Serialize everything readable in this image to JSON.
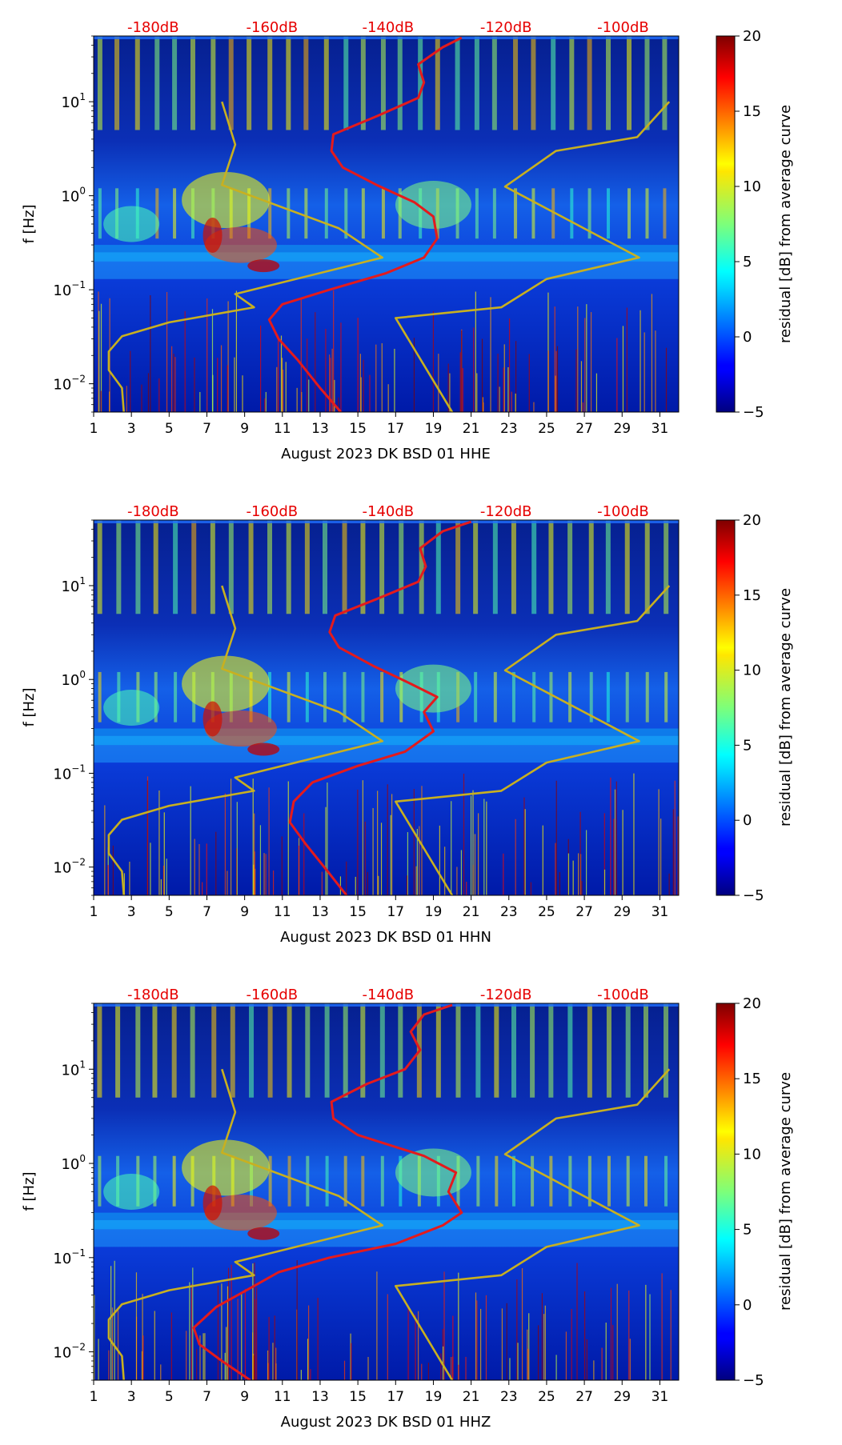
{
  "figure": {
    "colorbar_label": "residual [dB] from average curve",
    "ylabel": "f [Hz]"
  },
  "chart_data": [
    {
      "type": "heatmap",
      "xlabel": "August 2023 DK BSD 01 HHE",
      "ylabel": "f [Hz]",
      "xlim": [
        1,
        32
      ],
      "ylim": [
        0.005,
        50
      ],
      "yscale": "log",
      "x_ticks": [
        "1",
        "3",
        "5",
        "7",
        "9",
        "11",
        "13",
        "15",
        "17",
        "19",
        "21",
        "23",
        "25",
        "27",
        "29",
        "31"
      ],
      "y_ticks": [
        "10^-2",
        "10^-1",
        "10^0",
        "10^1"
      ],
      "top_axis_labels": [
        "-180dB",
        "-160dB",
        "-140dB",
        "-120dB",
        "-100dB"
      ],
      "colorbar": {
        "min": -5,
        "max": 20,
        "ticks": [
          "-5",
          "0",
          "5",
          "10",
          "15",
          "20"
        ],
        "label": "residual [dB] from average curve",
        "colormap": "jet"
      },
      "series": [
        {
          "color": "#e41a1c",
          "points": [
            [
              14.1,
              0.005
            ],
            [
              13.0,
              0.009
            ],
            [
              11.8,
              0.018
            ],
            [
              10.8,
              0.03
            ],
            [
              10.3,
              0.048
            ],
            [
              11.0,
              0.07
            ],
            [
              13.5,
              0.1
            ],
            [
              16.5,
              0.15
            ],
            [
              18.5,
              0.22
            ],
            [
              19.2,
              0.35
            ],
            [
              19.0,
              0.6
            ],
            [
              18.0,
              0.85
            ],
            [
              16.0,
              1.3
            ],
            [
              14.2,
              2.0
            ],
            [
              13.6,
              3.0
            ],
            [
              13.7,
              4.5
            ],
            [
              16.0,
              7.0
            ],
            [
              18.2,
              11.0
            ],
            [
              18.5,
              16.0
            ],
            [
              18.2,
              25.0
            ],
            [
              19.5,
              38.0
            ],
            [
              20.5,
              48.0
            ]
          ]
        },
        {
          "color": "#c8b020",
          "points": [
            [
              2.6,
              0.005
            ],
            [
              2.5,
              0.009
            ],
            [
              1.8,
              0.014
            ],
            [
              1.8,
              0.022
            ],
            [
              2.5,
              0.032
            ],
            [
              5.0,
              0.045
            ],
            [
              9.5,
              0.065
            ],
            [
              8.5,
              0.09
            ],
            [
              16.3,
              0.22
            ],
            [
              14.0,
              0.45
            ],
            [
              7.8,
              1.3
            ],
            [
              8.5,
              3.5
            ],
            [
              7.8,
              10.0
            ]
          ]
        },
        {
          "color": "#c8b020",
          "points": [
            [
              20.0,
              0.005
            ],
            [
              17.0,
              0.05
            ],
            [
              22.6,
              0.065
            ],
            [
              25.0,
              0.13
            ],
            [
              29.9,
              0.22
            ],
            [
              22.8,
              1.25
            ],
            [
              25.5,
              3.0
            ],
            [
              29.8,
              4.2
            ],
            [
              31.5,
              10.0
            ]
          ]
        }
      ]
    },
    {
      "type": "heatmap",
      "xlabel": "August 2023 DK BSD 01 HHN",
      "ylabel": "f [Hz]",
      "xlim": [
        1,
        32
      ],
      "ylim": [
        0.005,
        50
      ],
      "yscale": "log",
      "x_ticks": [
        "1",
        "3",
        "5",
        "7",
        "9",
        "11",
        "13",
        "15",
        "17",
        "19",
        "21",
        "23",
        "25",
        "27",
        "29",
        "31"
      ],
      "y_ticks": [
        "10^-2",
        "10^-1",
        "10^0",
        "10^1"
      ],
      "top_axis_labels": [
        "-180dB",
        "-160dB",
        "-140dB",
        "-120dB",
        "-100dB"
      ],
      "colorbar": {
        "min": -5,
        "max": 20,
        "ticks": [
          "-5",
          "0",
          "5",
          "10",
          "15",
          "20"
        ],
        "label": "residual [dB] from average curve",
        "colormap": "jet"
      },
      "series": [
        {
          "color": "#e41a1c",
          "points": [
            [
              14.4,
              0.005
            ],
            [
              13.4,
              0.009
            ],
            [
              12.2,
              0.018
            ],
            [
              11.4,
              0.03
            ],
            [
              11.6,
              0.05
            ],
            [
              12.6,
              0.08
            ],
            [
              15.0,
              0.12
            ],
            [
              17.5,
              0.17
            ],
            [
              19.0,
              0.28
            ],
            [
              18.5,
              0.45
            ],
            [
              19.2,
              0.65
            ],
            [
              17.8,
              0.9
            ],
            [
              15.8,
              1.4
            ],
            [
              14.0,
              2.2
            ],
            [
              13.5,
              3.2
            ],
            [
              13.8,
              4.8
            ],
            [
              16.0,
              7.2
            ],
            [
              18.2,
              11.0
            ],
            [
              18.6,
              16.0
            ],
            [
              18.3,
              25.0
            ],
            [
              19.5,
              38.0
            ],
            [
              21.0,
              48.0
            ]
          ]
        },
        {
          "color": "#c8b020",
          "points": [
            [
              2.6,
              0.005
            ],
            [
              2.5,
              0.009
            ],
            [
              1.8,
              0.014
            ],
            [
              1.8,
              0.022
            ],
            [
              2.5,
              0.032
            ],
            [
              5.0,
              0.045
            ],
            [
              9.5,
              0.065
            ],
            [
              8.5,
              0.09
            ],
            [
              16.3,
              0.22
            ],
            [
              14.0,
              0.45
            ],
            [
              7.8,
              1.3
            ],
            [
              8.5,
              3.5
            ],
            [
              7.8,
              10.0
            ]
          ]
        },
        {
          "color": "#c8b020",
          "points": [
            [
              20.0,
              0.005
            ],
            [
              17.0,
              0.05
            ],
            [
              22.6,
              0.065
            ],
            [
              25.0,
              0.13
            ],
            [
              29.9,
              0.22
            ],
            [
              22.8,
              1.25
            ],
            [
              25.5,
              3.0
            ],
            [
              29.8,
              4.2
            ],
            [
              31.5,
              10.0
            ]
          ]
        }
      ]
    },
    {
      "type": "heatmap",
      "xlabel": "August 2023 DK BSD 01 HHZ",
      "ylabel": "f [Hz]",
      "xlim": [
        1,
        32
      ],
      "ylim": [
        0.005,
        50
      ],
      "yscale": "log",
      "x_ticks": [
        "1",
        "3",
        "5",
        "7",
        "9",
        "11",
        "13",
        "15",
        "17",
        "19",
        "21",
        "23",
        "25",
        "27",
        "29",
        "31"
      ],
      "y_ticks": [
        "10^-2",
        "10^-1",
        "10^0",
        "10^1"
      ],
      "top_axis_labels": [
        "-180dB",
        "-160dB",
        "-140dB",
        "-120dB",
        "-100dB"
      ],
      "colorbar": {
        "min": -5,
        "max": 20,
        "ticks": [
          "-5",
          "0",
          "5",
          "10",
          "15",
          "20"
        ],
        "label": "residual [dB] from average curve",
        "colormap": "jet"
      },
      "series": [
        {
          "color": "#e41a1c",
          "points": [
            [
              9.3,
              0.005
            ],
            [
              7.8,
              0.008
            ],
            [
              6.6,
              0.012
            ],
            [
              6.3,
              0.018
            ],
            [
              7.5,
              0.03
            ],
            [
              9.5,
              0.05
            ],
            [
              10.8,
              0.07
            ],
            [
              13.5,
              0.1
            ],
            [
              17.0,
              0.14
            ],
            [
              19.5,
              0.22
            ],
            [
              20.5,
              0.3
            ],
            [
              19.8,
              0.5
            ],
            [
              20.2,
              0.8
            ],
            [
              18.5,
              1.2
            ],
            [
              15.0,
              2.0
            ],
            [
              13.7,
              3.0
            ],
            [
              13.6,
              4.5
            ],
            [
              15.5,
              7.0
            ],
            [
              17.5,
              10.0
            ],
            [
              18.3,
              16.0
            ],
            [
              17.8,
              25.0
            ],
            [
              18.5,
              38.0
            ],
            [
              20.0,
              48.0
            ]
          ]
        },
        {
          "color": "#c8b020",
          "points": [
            [
              2.6,
              0.005
            ],
            [
              2.5,
              0.009
            ],
            [
              1.8,
              0.014
            ],
            [
              1.8,
              0.022
            ],
            [
              2.5,
              0.032
            ],
            [
              5.0,
              0.045
            ],
            [
              9.5,
              0.065
            ],
            [
              8.5,
              0.09
            ],
            [
              16.3,
              0.22
            ],
            [
              14.0,
              0.45
            ],
            [
              7.8,
              1.3
            ],
            [
              8.5,
              3.5
            ],
            [
              7.8,
              10.0
            ]
          ]
        },
        {
          "color": "#c8b020",
          "points": [
            [
              20.0,
              0.005
            ],
            [
              17.0,
              0.05
            ],
            [
              22.6,
              0.065
            ],
            [
              25.0,
              0.13
            ],
            [
              29.9,
              0.22
            ],
            [
              22.8,
              1.25
            ],
            [
              25.5,
              3.0
            ],
            [
              29.8,
              4.2
            ],
            [
              31.5,
              10.0
            ]
          ]
        }
      ]
    }
  ]
}
